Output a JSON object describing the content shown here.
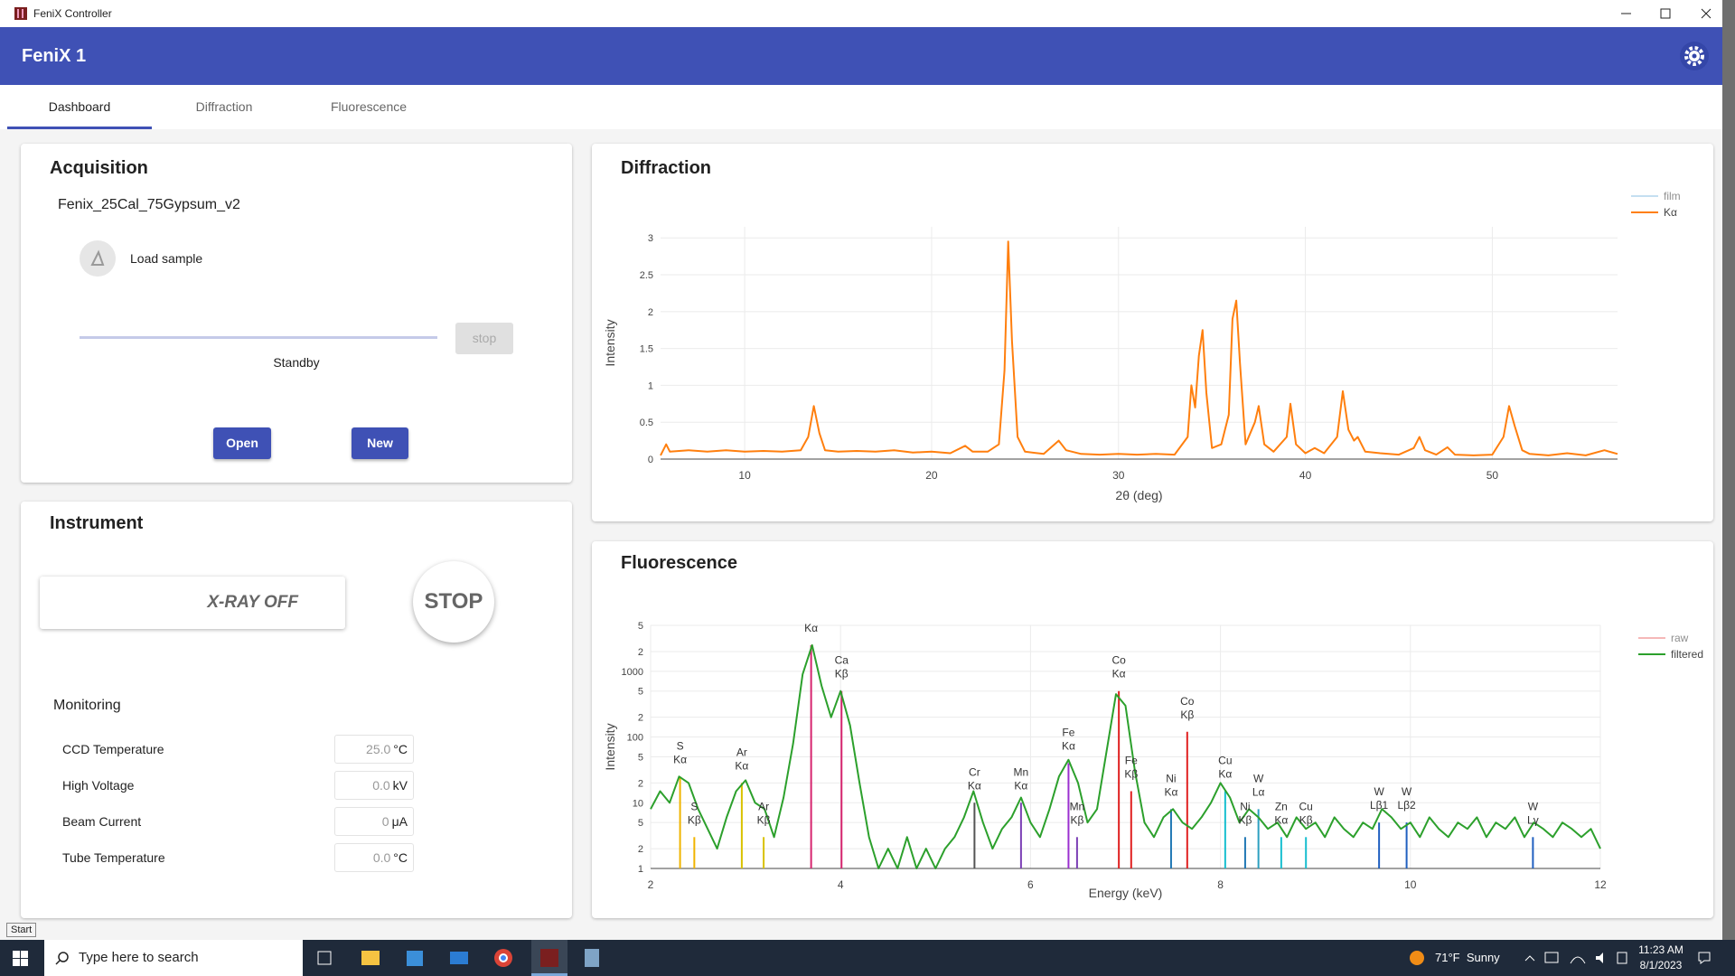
{
  "window": {
    "title": "FeniX Controller"
  },
  "app_bar": {
    "title": "FeniX 1"
  },
  "tabs": [
    "Dashboard",
    "Diffraction",
    "Fluorescence"
  ],
  "acquisition": {
    "title": "Acquisition",
    "sample": "Fenix_25Cal_75Gypsum_v2",
    "load_label": "Load sample",
    "stop_button": "stop",
    "status": "Standby",
    "buttons": [
      "Open",
      "New"
    ]
  },
  "instrument": {
    "title": "Instrument",
    "xray_status": "X-RAY OFF",
    "stop_button": "STOP",
    "monitoring": {
      "title": "Monitoring",
      "rows": [
        {
          "label": "CCD Temperature",
          "value": "25.0",
          "unit": "°C"
        },
        {
          "label": "High Voltage",
          "value": "0.0",
          "unit": "kV"
        },
        {
          "label": "Beam Current",
          "value": "0",
          "unit": "μA"
        },
        {
          "label": "Tube Temperature",
          "value": "0.0",
          "unit": "°C"
        }
      ]
    }
  },
  "chart_data": [
    {
      "type": "line",
      "title": "Diffraction",
      "x_label": "2θ (deg)",
      "y_label": "Intensity",
      "xlim": [
        5.5,
        56.7
      ],
      "xticks": [
        10,
        20,
        30,
        40,
        50
      ],
      "ylim": [
        0,
        3.15
      ],
      "yticks": [
        0,
        0.5,
        1,
        1.5,
        2,
        2.5,
        3
      ],
      "grid": true,
      "legend": "top-right",
      "x": [
        5.5,
        5.8,
        6,
        7,
        8,
        9,
        10,
        11,
        12,
        13,
        13.4,
        13.7,
        14,
        14.3,
        15,
        16,
        17,
        18,
        19,
        20,
        21,
        21.8,
        22.2,
        23,
        23.6,
        23.9,
        24.1,
        24.3,
        24.6,
        25,
        26,
        26.8,
        27.2,
        28,
        29,
        30,
        31,
        32,
        33,
        33.7,
        33.9,
        34.1,
        34.3,
        34.5,
        34.7,
        35,
        35.5,
        35.9,
        36.1,
        36.3,
        36.5,
        36.8,
        37.3,
        37.5,
        37.8,
        38.3,
        39,
        39.2,
        39.5,
        40,
        40.5,
        41,
        41.7,
        42,
        42.3,
        42.6,
        42.8,
        43.2,
        44,
        45,
        45.8,
        46.1,
        46.4,
        47,
        47.6,
        48,
        49,
        50,
        50.6,
        50.9,
        51.2,
        51.6,
        52,
        53,
        54,
        55,
        56,
        56.7
      ],
      "series": [
        {
          "name": "film",
          "color": "#9ecae9",
          "visible": "legendonly"
        },
        {
          "name": "Kα",
          "color": "#ff7f0e",
          "values": [
            0.05,
            0.2,
            0.1,
            0.12,
            0.1,
            0.12,
            0.1,
            0.11,
            0.1,
            0.12,
            0.3,
            0.72,
            0.35,
            0.12,
            0.1,
            0.11,
            0.1,
            0.12,
            0.09,
            0.1,
            0.08,
            0.18,
            0.1,
            0.1,
            0.2,
            1.2,
            2.95,
            1.6,
            0.3,
            0.1,
            0.07,
            0.25,
            0.12,
            0.07,
            0.06,
            0.07,
            0.06,
            0.07,
            0.06,
            0.3,
            1.0,
            0.7,
            1.4,
            1.75,
            0.9,
            0.15,
            0.2,
            0.6,
            1.9,
            2.15,
            1.3,
            0.2,
            0.5,
            0.72,
            0.2,
            0.1,
            0.3,
            0.75,
            0.2,
            0.08,
            0.15,
            0.08,
            0.3,
            0.92,
            0.4,
            0.25,
            0.3,
            0.1,
            0.08,
            0.06,
            0.15,
            0.3,
            0.12,
            0.06,
            0.16,
            0.06,
            0.05,
            0.06,
            0.3,
            0.72,
            0.45,
            0.12,
            0.07,
            0.05,
            0.08,
            0.05,
            0.12,
            0.07
          ]
        }
      ]
    },
    {
      "type": "line",
      "title": "Fluorescence",
      "x_label": "Energy (keV)",
      "y_label": "Intensity",
      "log_y": true,
      "xlim": [
        2,
        12
      ],
      "xticks": [
        2,
        4,
        6,
        8,
        10,
        12
      ],
      "ylim": [
        1,
        5000
      ],
      "yticks": [
        1,
        2,
        5,
        10,
        {
          "value": 20,
          "label": "2"
        },
        {
          "value": 50,
          "label": "5"
        },
        100,
        {
          "value": 200,
          "label": "2"
        },
        {
          "value": 500,
          "label": "5"
        },
        1000,
        {
          "value": 2000,
          "label": "2"
        },
        {
          "value": 5000,
          "label": "5"
        }
      ],
      "grid": true,
      "legend": "top-right",
      "x": [
        2,
        2.1,
        2.2,
        2.3,
        2.4,
        2.5,
        2.6,
        2.7,
        2.8,
        2.9,
        3,
        3.1,
        3.2,
        3.3,
        3.4,
        3.5,
        3.6,
        3.7,
        3.8,
        3.9,
        4,
        4.1,
        4.2,
        4.3,
        4.4,
        4.5,
        4.6,
        4.7,
        4.8,
        4.9,
        5,
        5.1,
        5.2,
        5.3,
        5.4,
        5.5,
        5.6,
        5.7,
        5.8,
        5.9,
        6,
        6.1,
        6.2,
        6.3,
        6.4,
        6.5,
        6.6,
        6.7,
        6.8,
        6.9,
        7,
        7.1,
        7.2,
        7.3,
        7.4,
        7.5,
        7.6,
        7.7,
        7.8,
        7.9,
        8,
        8.1,
        8.2,
        8.3,
        8.4,
        8.5,
        8.6,
        8.7,
        8.8,
        8.9,
        9,
        9.1,
        9.2,
        9.3,
        9.4,
        9.5,
        9.6,
        9.7,
        9.8,
        9.9,
        10,
        10.1,
        10.2,
        10.3,
        10.4,
        10.5,
        10.6,
        10.7,
        10.8,
        10.9,
        11,
        11.1,
        11.2,
        11.3,
        11.4,
        11.5,
        11.6,
        11.7,
        11.8,
        11.9,
        12
      ],
      "series": [
        {
          "name": "raw",
          "color": "#ef8a8a",
          "visible": "legendonly"
        },
        {
          "name": "filtered",
          "color": "#2ca02c",
          "values": [
            8,
            15,
            10,
            25,
            20,
            8,
            4,
            2,
            6,
            15,
            22,
            10,
            8,
            3,
            12,
            80,
            900,
            2500,
            600,
            200,
            500,
            150,
            20,
            3,
            1,
            2,
            1,
            3,
            1,
            2,
            1,
            2,
            3,
            6,
            15,
            5,
            2,
            4,
            6,
            12,
            5,
            3,
            8,
            25,
            45,
            20,
            5,
            8,
            60,
            450,
            300,
            30,
            5,
            3,
            6,
            8,
            5,
            4,
            6,
            10,
            20,
            12,
            5,
            8,
            6,
            4,
            5,
            3,
            6,
            4,
            5,
            3,
            6,
            4,
            3,
            5,
            4,
            8,
            6,
            4,
            5,
            3,
            6,
            4,
            3,
            5,
            4,
            6,
            3,
            5,
            4,
            6,
            3,
            5,
            4,
            3,
            5,
            4,
            3,
            4,
            2
          ]
        }
      ],
      "lines": [
        {
          "element": "S",
          "line": "Kα",
          "energy": 2.31,
          "height": 25,
          "color": "#f0b400"
        },
        {
          "element": "S",
          "line": "Kβ",
          "energy": 2.46,
          "height": 3,
          "color": "#f0b400"
        },
        {
          "element": "Ar",
          "line": "Kα",
          "energy": 2.96,
          "height": 20,
          "color": "#d9c200"
        },
        {
          "element": "Ar",
          "line": "Kβ",
          "energy": 3.19,
          "height": 3,
          "color": "#d9c200"
        },
        {
          "line": "Kα",
          "energy": 3.69,
          "height": 2500,
          "color": "#d6246e"
        },
        {
          "element": "Ca",
          "line": "Kβ",
          "energy": 4.01,
          "height": 500,
          "color": "#d6246e"
        },
        {
          "element": "Cr",
          "line": "Kα",
          "energy": 5.41,
          "height": 10,
          "color": "#555555"
        },
        {
          "element": "Mn",
          "line": "Kα",
          "energy": 5.9,
          "height": 10,
          "color": "#7b3fb5"
        },
        {
          "element": "Mn",
          "line": "Kβ",
          "energy": 6.49,
          "height": 3,
          "color": "#7b3fb5"
        },
        {
          "element": "Fe",
          "line": "Kα",
          "energy": 6.4,
          "height": 40,
          "color": "#9b30d0"
        },
        {
          "element": "Fe",
          "line": "Kβ",
          "energy": 7.06,
          "height": 15,
          "color": "#e02020"
        },
        {
          "element": "Co",
          "line": "Kα",
          "energy": 6.93,
          "height": 500,
          "color": "#e02020"
        },
        {
          "element": "Co",
          "line": "Kβ",
          "energy": 7.65,
          "height": 120,
          "color": "#e02020"
        },
        {
          "element": "Ni",
          "line": "Kα",
          "energy": 7.48,
          "height": 8,
          "color": "#1f77b4"
        },
        {
          "element": "Ni",
          "line": "Kβ",
          "energy": 8.26,
          "height": 3,
          "color": "#1f77b4"
        },
        {
          "element": "Cu",
          "line": "Kα",
          "energy": 8.05,
          "height": 15,
          "color": "#17becf"
        },
        {
          "element": "Cu",
          "line": "Kβ",
          "energy": 8.9,
          "height": 3,
          "color": "#17becf"
        },
        {
          "element": "Zn",
          "line": "Kα",
          "energy": 8.64,
          "height": 3,
          "color": "#17becf"
        },
        {
          "element": "W",
          "line": "Lα",
          "energy": 8.4,
          "height": 8,
          "color": "#2ca0c0"
        },
        {
          "element": "W",
          "line": "Lβ1",
          "energy": 9.67,
          "height": 5,
          "color": "#2060c0"
        },
        {
          "element": "W",
          "line": "Lβ2",
          "energy": 9.96,
          "height": 5,
          "color": "#2060c0"
        },
        {
          "element": "W",
          "line": "Lγ",
          "energy": 11.29,
          "height": 3,
          "color": "#2060c0"
        }
      ]
    }
  ],
  "taskbar": {
    "tooltip": "Start",
    "search": "Type here to search",
    "weather": "71°F  Sunny",
    "time": "11:23 AM",
    "date": "8/1/2023"
  }
}
